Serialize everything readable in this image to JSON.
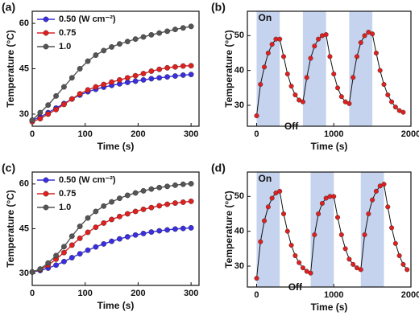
{
  "chart_data": [
    {
      "type": "line",
      "panel_label": "(a)",
      "x_label": "Time (s)",
      "y_label": "Temperature (°C)",
      "xlim": [
        0,
        315
      ],
      "ylim": [
        26,
        64
      ],
      "xticks": [
        0,
        100,
        200,
        300
      ],
      "yticks": [
        30,
        45,
        60
      ],
      "legend": "upper left",
      "x": [
        0,
        15,
        30,
        45,
        60,
        75,
        90,
        105,
        120,
        135,
        150,
        165,
        180,
        195,
        210,
        225,
        240,
        255,
        270,
        285,
        300
      ],
      "series": [
        {
          "name": "0.50 (W cm⁻²)",
          "color": "#3a2ee0",
          "values": [
            28,
            29,
            30.5,
            32,
            33.5,
            35,
            36.3,
            37.4,
            38.2,
            38.9,
            39.5,
            40,
            40.5,
            40.9,
            41.3,
            41.7,
            42,
            42.3,
            42.6,
            42.9,
            43.1
          ]
        },
        {
          "name": "0.75",
          "color": "#e02020",
          "values": [
            27.5,
            28.5,
            30,
            31.5,
            33.2,
            35,
            36.7,
            38,
            39,
            39.8,
            40.6,
            41.3,
            42,
            42.7,
            43.4,
            44.2,
            44.8,
            45.3,
            45.6,
            45.9,
            46
          ]
        },
        {
          "name": "1.0",
          "color": "#555555",
          "values": [
            28,
            30.5,
            33,
            36,
            39,
            42,
            45,
            47.5,
            49.5,
            51,
            52.2,
            53.2,
            54,
            54.8,
            55.5,
            56.2,
            56.8,
            57.4,
            58,
            58.5,
            59
          ]
        }
      ]
    },
    {
      "type": "cycle",
      "panel_label": "(b)",
      "x_label": "Time (s)",
      "y_label": "Temperature (°C)",
      "annotations": [
        "On",
        "Off"
      ],
      "xlim": [
        -120,
        2000
      ],
      "ylim": [
        24,
        57
      ],
      "xticks": [
        0,
        1000,
        2000
      ],
      "yticks": [
        30,
        40,
        50
      ],
      "shaded": [
        [
          0,
          300
        ],
        [
          600,
          900
        ],
        [
          1200,
          1500
        ]
      ],
      "shade_color": "#c5d3ee",
      "line_color": "#111111",
      "x": [
        0,
        50,
        100,
        150,
        200,
        250,
        300,
        350,
        400,
        450,
        500,
        550,
        600,
        650,
        700,
        750,
        800,
        850,
        900,
        950,
        1000,
        1050,
        1100,
        1150,
        1200,
        1250,
        1300,
        1350,
        1400,
        1450,
        1500,
        1550,
        1600,
        1650,
        1700,
        1750,
        1800,
        1850,
        1900
      ],
      "series": [
        {
          "color": "#e02020",
          "values": [
            27,
            36,
            41,
            45,
            47.5,
            49,
            49,
            44,
            39,
            35.5,
            33,
            31.5,
            31,
            38,
            43.5,
            47,
            49,
            50,
            50.3,
            44,
            39,
            35,
            32.5,
            31,
            30.5,
            38,
            44,
            48,
            50,
            51,
            50.5,
            45,
            40,
            36,
            33,
            31,
            29.5,
            28.5,
            28
          ]
        }
      ]
    },
    {
      "type": "line",
      "panel_label": "(c)",
      "x_label": "Time (s)",
      "y_label": "Temperature (°C)",
      "xlim": [
        0,
        315
      ],
      "ylim": [
        26,
        64
      ],
      "xticks": [
        0,
        100,
        200,
        300
      ],
      "yticks": [
        30,
        45,
        60
      ],
      "legend": "upper left",
      "x": [
        0,
        15,
        30,
        45,
        60,
        75,
        90,
        105,
        120,
        135,
        150,
        165,
        180,
        195,
        210,
        225,
        240,
        255,
        270,
        285,
        300
      ],
      "series": [
        {
          "name": "0.50 (W cm⁻²)",
          "color": "#3a2ee0",
          "values": [
            30.5,
            31,
            31.8,
            32.8,
            34,
            35.3,
            36.6,
            37.8,
            38.9,
            39.9,
            40.8,
            41.6,
            42.3,
            42.9,
            43.4,
            43.9,
            44.3,
            44.6,
            44.9,
            45.1,
            45.3
          ]
        },
        {
          "name": "0.75",
          "color": "#e02020",
          "values": [
            30.5,
            31.3,
            32.8,
            34.8,
            37,
            39.5,
            41.8,
            43.8,
            45.5,
            46.9,
            48.1,
            49.1,
            50,
            50.8,
            51.5,
            52.1,
            52.7,
            53.2,
            53.6,
            53.9,
            54.2
          ]
        },
        {
          "name": "1.0",
          "color": "#555555",
          "values": [
            30.5,
            31.5,
            33.5,
            36,
            39,
            42.5,
            45.8,
            48.6,
            50.8,
            52.6,
            54,
            55.2,
            56.2,
            57,
            57.7,
            58.3,
            58.8,
            59.2,
            59.6,
            59.9,
            60.1
          ]
        }
      ]
    },
    {
      "type": "cycle",
      "panel_label": "(d)",
      "x_label": "Time (s)",
      "y_label": "Temperature (°C)",
      "annotations": [
        "On",
        "Off"
      ],
      "xlim": [
        -120,
        2000
      ],
      "ylim": [
        24,
        57
      ],
      "xticks": [
        0,
        1000,
        2000
      ],
      "yticks": [
        30,
        40,
        50
      ],
      "shaded": [
        [
          0,
          300
        ],
        [
          700,
          1000
        ],
        [
          1350,
          1650
        ]
      ],
      "shade_color": "#c5d3ee",
      "line_color": "#111111",
      "x": [
        0,
        50,
        100,
        150,
        200,
        250,
        300,
        350,
        400,
        450,
        500,
        550,
        600,
        650,
        700,
        750,
        800,
        850,
        900,
        950,
        1000,
        1050,
        1100,
        1150,
        1200,
        1250,
        1300,
        1350,
        1400,
        1450,
        1500,
        1550,
        1600,
        1650,
        1700,
        1750,
        1800,
        1850,
        1900,
        1950
      ],
      "series": [
        {
          "color": "#e02020",
          "values": [
            26.5,
            37,
            43,
            47,
            49.5,
            51,
            51.5,
            45,
            40,
            36,
            33,
            31,
            29.5,
            28.5,
            28,
            39,
            45,
            48,
            49.5,
            50,
            50,
            44,
            39,
            35,
            32,
            30.5,
            29.5,
            29,
            39,
            45,
            49,
            51.5,
            53,
            53.5,
            47,
            41,
            36.5,
            33,
            30.5,
            29
          ]
        }
      ]
    }
  ]
}
